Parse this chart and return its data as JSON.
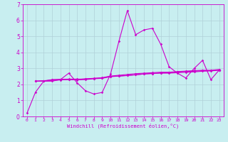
{
  "xlabel": "Windchill (Refroidissement éolien,°C)",
  "ylabel": "",
  "bg_color": "#c8eef0",
  "grid_color": "#b0d0d8",
  "line_color": "#cc00cc",
  "xlim": [
    -0.5,
    23.5
  ],
  "ylim": [
    0,
    7
  ],
  "yticks": [
    0,
    1,
    2,
    3,
    4,
    5,
    6,
    7
  ],
  "xticks": [
    0,
    1,
    2,
    3,
    4,
    5,
    6,
    7,
    8,
    9,
    10,
    11,
    12,
    13,
    14,
    15,
    16,
    17,
    18,
    19,
    20,
    21,
    22,
    23
  ],
  "series1_x": [
    0,
    1,
    2,
    3,
    4,
    5,
    6,
    7,
    8,
    9,
    10,
    11,
    12,
    13,
    14,
    15,
    16,
    17,
    18,
    19,
    20,
    21,
    22,
    23
  ],
  "series1_y": [
    0.2,
    1.5,
    2.2,
    2.2,
    2.3,
    2.7,
    2.1,
    1.6,
    1.4,
    1.5,
    2.65,
    4.7,
    6.6,
    5.1,
    5.4,
    5.5,
    4.5,
    3.1,
    2.7,
    2.4,
    3.0,
    3.5,
    2.3,
    2.9
  ],
  "series2_x": [
    1,
    2,
    3,
    4,
    5,
    6,
    7,
    8,
    9,
    10,
    11,
    12,
    13,
    14,
    15,
    16,
    17,
    18,
    19,
    20,
    21,
    22,
    23
  ],
  "series2_y": [
    2.2,
    2.2,
    2.3,
    2.3,
    2.3,
    2.3,
    2.35,
    2.38,
    2.4,
    2.5,
    2.52,
    2.55,
    2.6,
    2.65,
    2.68,
    2.7,
    2.7,
    2.73,
    2.76,
    2.78,
    2.82,
    2.84,
    2.88
  ],
  "series3_x": [
    1,
    2,
    3,
    4,
    5,
    6,
    7,
    8,
    9,
    10,
    11,
    12,
    13,
    14,
    15,
    16,
    17,
    18,
    19,
    20,
    21,
    22,
    23
  ],
  "series3_y": [
    2.2,
    2.22,
    2.25,
    2.28,
    2.3,
    2.28,
    2.3,
    2.35,
    2.38,
    2.48,
    2.52,
    2.56,
    2.6,
    2.65,
    2.68,
    2.72,
    2.73,
    2.77,
    2.8,
    2.82,
    2.86,
    2.86,
    2.9
  ],
  "series4_x": [
    1,
    2,
    3,
    4,
    5,
    6,
    7,
    8,
    9,
    10,
    11,
    12,
    13,
    14,
    15,
    16,
    17,
    18,
    19,
    20,
    21,
    22,
    23
  ],
  "series4_y": [
    2.2,
    2.23,
    2.28,
    2.32,
    2.33,
    2.33,
    2.33,
    2.37,
    2.42,
    2.52,
    2.57,
    2.62,
    2.67,
    2.7,
    2.73,
    2.76,
    2.76,
    2.8,
    2.83,
    2.86,
    2.88,
    2.88,
    2.93
  ]
}
